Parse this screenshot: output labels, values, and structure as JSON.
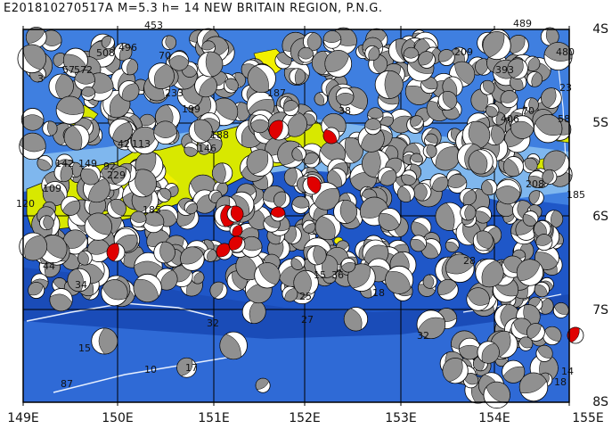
{
  "title": "E201810270517A  M=5.3  h=  14  NEW BRITAIN REGION, P.N.G.",
  "axes": {
    "lon_labels": [
      "149E",
      "150E",
      "151E",
      "152E",
      "153E",
      "154E",
      "155E"
    ],
    "lat_labels": [
      "4S",
      "5S",
      "6S",
      "7S",
      "8S"
    ]
  },
  "colors": {
    "deep_sea": "#1f57c8",
    "mid_sea": "#3f7fe0",
    "shallow_sea": "#7fb7ee",
    "land_low": "#d8e800",
    "land_high": "#f2f000",
    "mechanism_fill": "#909090",
    "target_fill": "#e00000",
    "grid": "#000000"
  },
  "depth_labels": [
    {
      "text": "453"
    },
    {
      "text": "496"
    },
    {
      "text": "508"
    },
    {
      "text": "57"
    },
    {
      "text": "572"
    },
    {
      "text": "70"
    },
    {
      "text": "233"
    },
    {
      "text": "199"
    },
    {
      "text": "42"
    },
    {
      "text": "3"
    },
    {
      "text": "146"
    },
    {
      "text": "142"
    },
    {
      "text": "149"
    },
    {
      "text": "92"
    },
    {
      "text": "120"
    },
    {
      "text": "109"
    },
    {
      "text": "229"
    },
    {
      "text": "185"
    },
    {
      "text": "44"
    },
    {
      "text": "34"
    },
    {
      "text": "15"
    },
    {
      "text": "87"
    },
    {
      "text": "10"
    },
    {
      "text": "17"
    },
    {
      "text": "32"
    },
    {
      "text": "27"
    },
    {
      "text": "18"
    },
    {
      "text": "32"
    },
    {
      "text": "393"
    },
    {
      "text": "480"
    },
    {
      "text": "23"
    },
    {
      "text": "58"
    },
    {
      "text": "70"
    },
    {
      "text": "406"
    },
    {
      "text": "209"
    },
    {
      "text": "489"
    },
    {
      "text": "185"
    },
    {
      "text": "208"
    },
    {
      "text": "14"
    },
    {
      "text": "18"
    },
    {
      "text": "28"
    },
    {
      "text": "188"
    },
    {
      "text": "187"
    },
    {
      "text": "15"
    },
    {
      "text": "36"
    },
    {
      "text": "25"
    },
    {
      "text": "38"
    },
    {
      "text": "113"
    }
  ]
}
